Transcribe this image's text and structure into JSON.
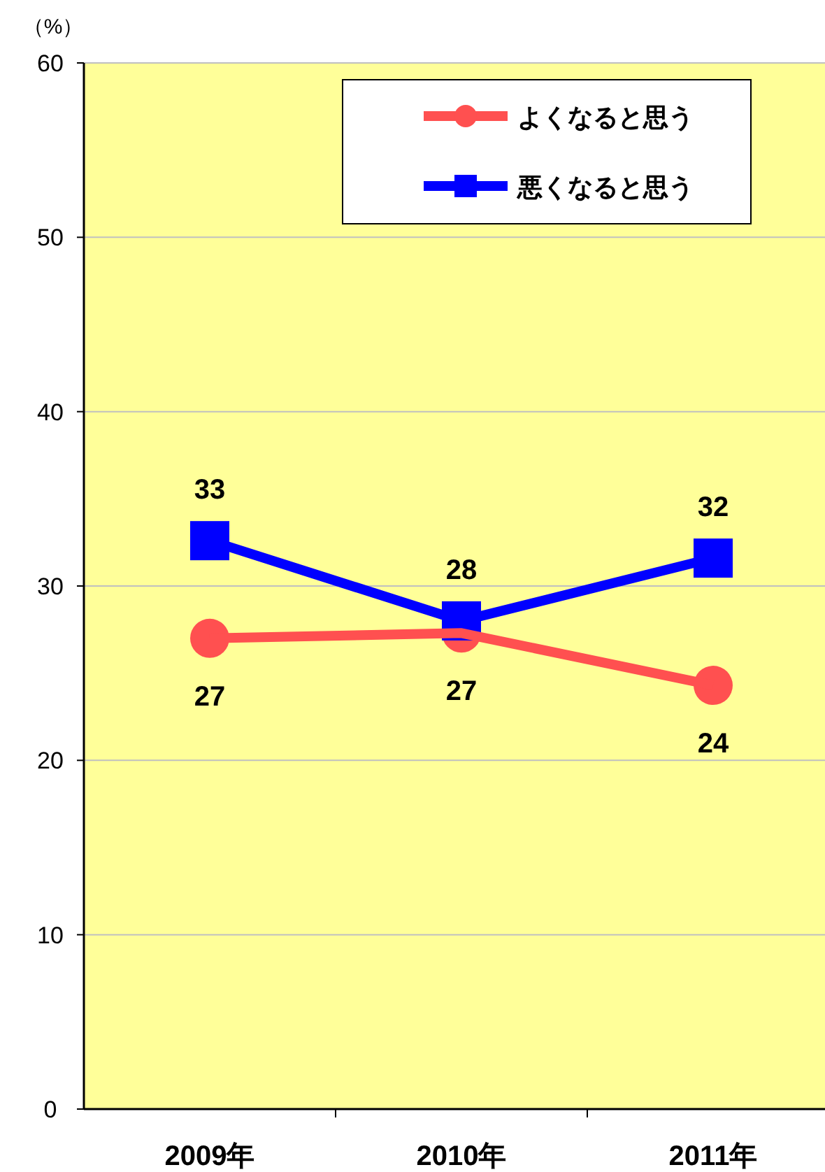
{
  "chart_data": {
    "type": "line",
    "ylabel": "（%）",
    "categories": [
      "2009年",
      "2010年",
      "2011年"
    ],
    "series": [
      {
        "name": "よくなると思う",
        "color": "#ff5050",
        "marker": "circle",
        "values": [
          27,
          27.3,
          24.3
        ],
        "value_labels": [
          "27",
          "27",
          "24"
        ]
      },
      {
        "name": "悪くなると思う",
        "color": "#0000ff",
        "marker": "square",
        "values": [
          32.6,
          28.0,
          31.6
        ],
        "value_labels": [
          "33",
          "28",
          "32"
        ]
      }
    ],
    "ylim": [
      0,
      60
    ],
    "yticks": [
      0,
      10,
      20,
      30,
      40,
      50,
      60
    ],
    "grid": "y",
    "legend": "top right"
  }
}
